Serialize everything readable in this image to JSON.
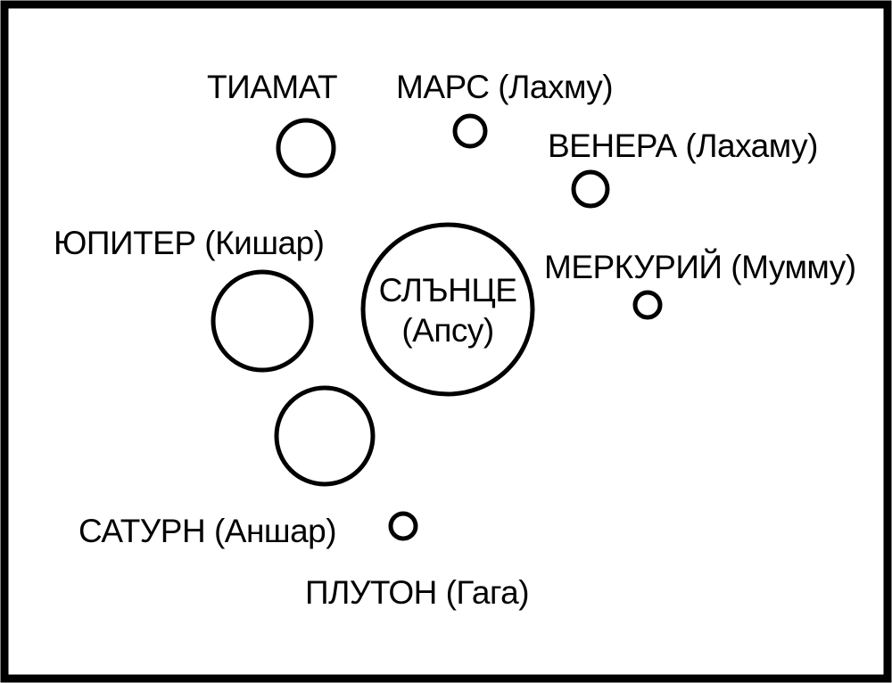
{
  "diagram": {
    "sun": {
      "line1": "СЛЪНЦЕ",
      "line2": "(Апсу)"
    },
    "labels": {
      "tiamat": "ТИАМАТ",
      "mars": "МАРС (Лахму)",
      "venus": "ВЕНЕРА (Лахаму)",
      "jupiter": "ЮПИТЕР (Кишар)",
      "mercury": "МЕРКУРИЙ (Мумму)",
      "saturn": "САТУРН (Аншар)",
      "pluto": "ПЛУТОН (Гага)"
    }
  }
}
